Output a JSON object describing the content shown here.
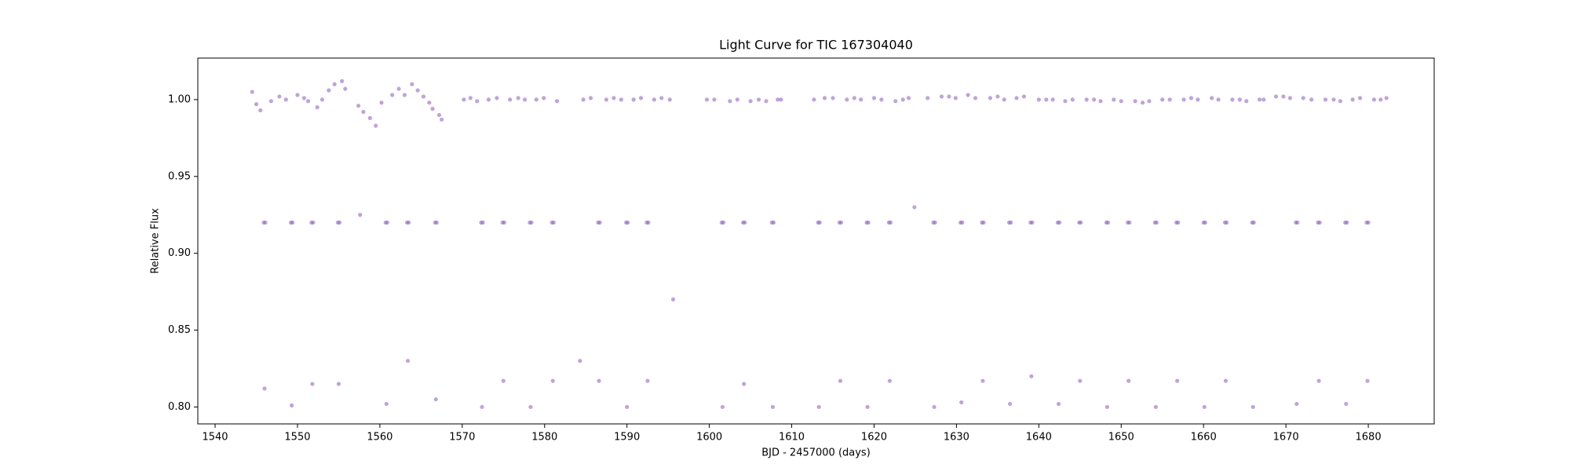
{
  "chart_data": {
    "type": "scatter",
    "title": "Light Curve for TIC 167304040",
    "xlabel": "BJD - 2457000 (days)",
    "ylabel": "Relative Flux",
    "color": "#9467bd",
    "xlim": [
      1537.9,
      1688.0
    ],
    "ylim": [
      0.789,
      1.027
    ],
    "xticks": [
      1540,
      1550,
      1560,
      1570,
      1580,
      1590,
      1600,
      1610,
      1620,
      1630,
      1640,
      1650,
      1660,
      1670,
      1680
    ],
    "yticks": [
      {
        "value": 0.8,
        "label": "0.80"
      },
      0.85,
      {
        "value": 0.9,
        "label": "0.90"
      },
      0.95,
      {
        "value": 1.0,
        "label": "1.00"
      }
    ],
    "grid": false,
    "x": [
      1544.5,
      1545.0,
      1545.5,
      1545.9,
      1546.0,
      1546.1,
      1546.8,
      1547.8,
      1548.6,
      1549.2,
      1549.3,
      1549.4,
      1550.0,
      1550.8,
      1551.3,
      1551.7,
      1551.8,
      1551.9,
      1552.4,
      1553.0,
      1553.8,
      1554.5,
      1554.9,
      1555.0,
      1555.1,
      1555.4,
      1555.8,
      1557.4,
      1557.6,
      1558.0,
      1558.8,
      1559.5,
      1560.2,
      1560.7,
      1560.8,
      1560.9,
      1561.5,
      1562.3,
      1563.0,
      1563.3,
      1563.4,
      1563.5,
      1563.9,
      1564.6,
      1565.3,
      1566.0,
      1566.4,
      1566.7,
      1566.8,
      1566.9,
      1567.2,
      1567.5,
      1570.2,
      1571.0,
      1571.8,
      1572.3,
      1572.4,
      1572.5,
      1573.2,
      1574.2,
      1574.9,
      1575.0,
      1575.1,
      1575.8,
      1576.8,
      1577.6,
      1578.2,
      1578.3,
      1578.4,
      1579.0,
      1579.9,
      1580.9,
      1581.0,
      1581.1,
      1581.5,
      1584.3,
      1584.7,
      1585.6,
      1586.5,
      1586.6,
      1586.7,
      1587.5,
      1588.4,
      1589.3,
      1589.9,
      1590.0,
      1590.1,
      1590.8,
      1591.7,
      1592.4,
      1592.5,
      1592.6,
      1593.3,
      1594.2,
      1595.2,
      1595.6,
      1599.7,
      1600.6,
      1601.5,
      1601.6,
      1601.7,
      1602.5,
      1603.4,
      1604.1,
      1604.2,
      1604.3,
      1605.0,
      1606.0,
      1606.9,
      1607.6,
      1607.7,
      1607.8,
      1608.3,
      1608.7,
      1612.7,
      1613.2,
      1613.3,
      1613.4,
      1614.0,
      1615.0,
      1615.8,
      1615.9,
      1616.0,
      1616.7,
      1617.6,
      1618.4,
      1619.1,
      1619.2,
      1619.3,
      1620.0,
      1620.9,
      1621.8,
      1621.9,
      1622.0,
      1622.6,
      1623.5,
      1624.2,
      1624.9,
      1626.5,
      1627.2,
      1627.3,
      1627.4,
      1628.2,
      1629.1,
      1629.9,
      1630.5,
      1630.6,
      1630.7,
      1631.4,
      1632.3,
      1633.1,
      1633.2,
      1633.3,
      1634.1,
      1635.0,
      1635.8,
      1636.4,
      1636.5,
      1636.6,
      1637.3,
      1638.2,
      1639.0,
      1639.1,
      1639.2,
      1640.0,
      1640.9,
      1641.7,
      1642.3,
      1642.4,
      1642.5,
      1643.2,
      1644.1,
      1644.9,
      1645.0,
      1645.1,
      1645.8,
      1646.7,
      1647.5,
      1648.2,
      1648.3,
      1648.4,
      1649.1,
      1650.0,
      1650.8,
      1650.9,
      1651.0,
      1651.7,
      1652.6,
      1653.4,
      1654.1,
      1654.2,
      1654.3,
      1655.0,
      1655.9,
      1656.7,
      1656.8,
      1656.9,
      1657.6,
      1658.5,
      1659.3,
      1660.0,
      1660.1,
      1660.2,
      1661.0,
      1661.8,
      1662.6,
      1662.7,
      1662.8,
      1663.5,
      1664.4,
      1665.2,
      1665.9,
      1666.0,
      1666.1,
      1666.8,
      1667.3,
      1668.8,
      1669.7,
      1670.5,
      1671.2,
      1671.3,
      1671.4,
      1672.1,
      1673.1,
      1673.9,
      1674.0,
      1674.1,
      1674.8,
      1675.8,
      1676.6,
      1677.2,
      1677.3,
      1677.4,
      1678.1,
      1679.0,
      1679.8,
      1679.9,
      1680.0,
      1680.7,
      1681.5,
      1682.2
    ],
    "values": [
      1.005,
      0.997,
      0.993,
      0.92,
      0.812,
      0.92,
      0.999,
      1.002,
      1.0,
      0.92,
      0.801,
      0.92,
      1.003,
      1.001,
      0.999,
      0.92,
      0.815,
      0.92,
      0.995,
      1.0,
      1.006,
      1.01,
      0.92,
      0.815,
      0.92,
      1.012,
      1.007,
      0.996,
      0.925,
      0.992,
      0.988,
      0.983,
      0.998,
      0.92,
      0.802,
      0.92,
      1.003,
      1.007,
      1.003,
      0.92,
      0.83,
      0.92,
      1.01,
      1.006,
      1.002,
      0.998,
      0.994,
      0.92,
      0.805,
      0.92,
      0.99,
      0.987,
      1.0,
      1.001,
      0.999,
      0.92,
      0.8,
      0.92,
      1.0,
      1.001,
      0.92,
      0.817,
      0.92,
      1.0,
      1.001,
      1.0,
      0.92,
      0.8,
      0.92,
      1.0,
      1.001,
      0.92,
      0.817,
      0.92,
      0.999,
      0.83,
      1.0,
      1.001,
      0.92,
      0.817,
      0.92,
      1.0,
      1.001,
      1.0,
      0.92,
      0.8,
      0.92,
      1.0,
      1.001,
      0.92,
      0.817,
      0.92,
      1.0,
      1.001,
      1.0,
      0.87,
      1.0,
      1.0,
      0.92,
      0.8,
      0.92,
      0.999,
      1.0,
      0.92,
      0.815,
      0.92,
      0.999,
      1.0,
      0.999,
      0.92,
      0.8,
      0.92,
      1.0,
      1.0,
      1.0,
      0.92,
      0.8,
      0.92,
      1.001,
      1.001,
      0.92,
      0.817,
      0.92,
      1.0,
      1.001,
      1.0,
      0.92,
      0.8,
      0.92,
      1.001,
      1.0,
      0.92,
      0.817,
      0.92,
      0.999,
      1.0,
      1.001,
      0.93,
      1.001,
      0.92,
      0.8,
      0.92,
      1.002,
      1.002,
      1.001,
      0.92,
      0.803,
      0.92,
      1.003,
      1.001,
      0.92,
      0.817,
      0.92,
      1.001,
      1.002,
      1.0,
      0.92,
      0.802,
      0.92,
      1.001,
      1.002,
      0.92,
      0.82,
      0.92,
      1.0,
      1.0,
      1.0,
      0.92,
      0.802,
      0.92,
      0.999,
      1.0,
      0.92,
      0.817,
      0.92,
      1.0,
      1.0,
      0.999,
      0.92,
      0.8,
      0.92,
      1.0,
      0.999,
      0.92,
      0.817,
      0.92,
      0.999,
      0.998,
      0.999,
      0.92,
      0.8,
      0.92,
      1.0,
      1.0,
      0.92,
      0.817,
      0.92,
      1.0,
      1.001,
      1.0,
      0.92,
      0.8,
      0.92,
      1.001,
      1.0,
      0.92,
      0.817,
      0.92,
      1.0,
      1.0,
      0.999,
      0.92,
      0.8,
      0.92,
      1.0,
      1.0,
      1.002,
      1.002,
      1.001,
      0.92,
      0.802,
      0.92,
      1.001,
      1.0,
      0.92,
      0.817,
      0.92,
      1.0,
      1.0,
      0.999,
      0.92,
      0.802,
      0.92,
      1.0,
      1.001,
      0.92,
      0.817,
      0.92,
      1.0,
      1.0,
      1.001
    ]
  }
}
